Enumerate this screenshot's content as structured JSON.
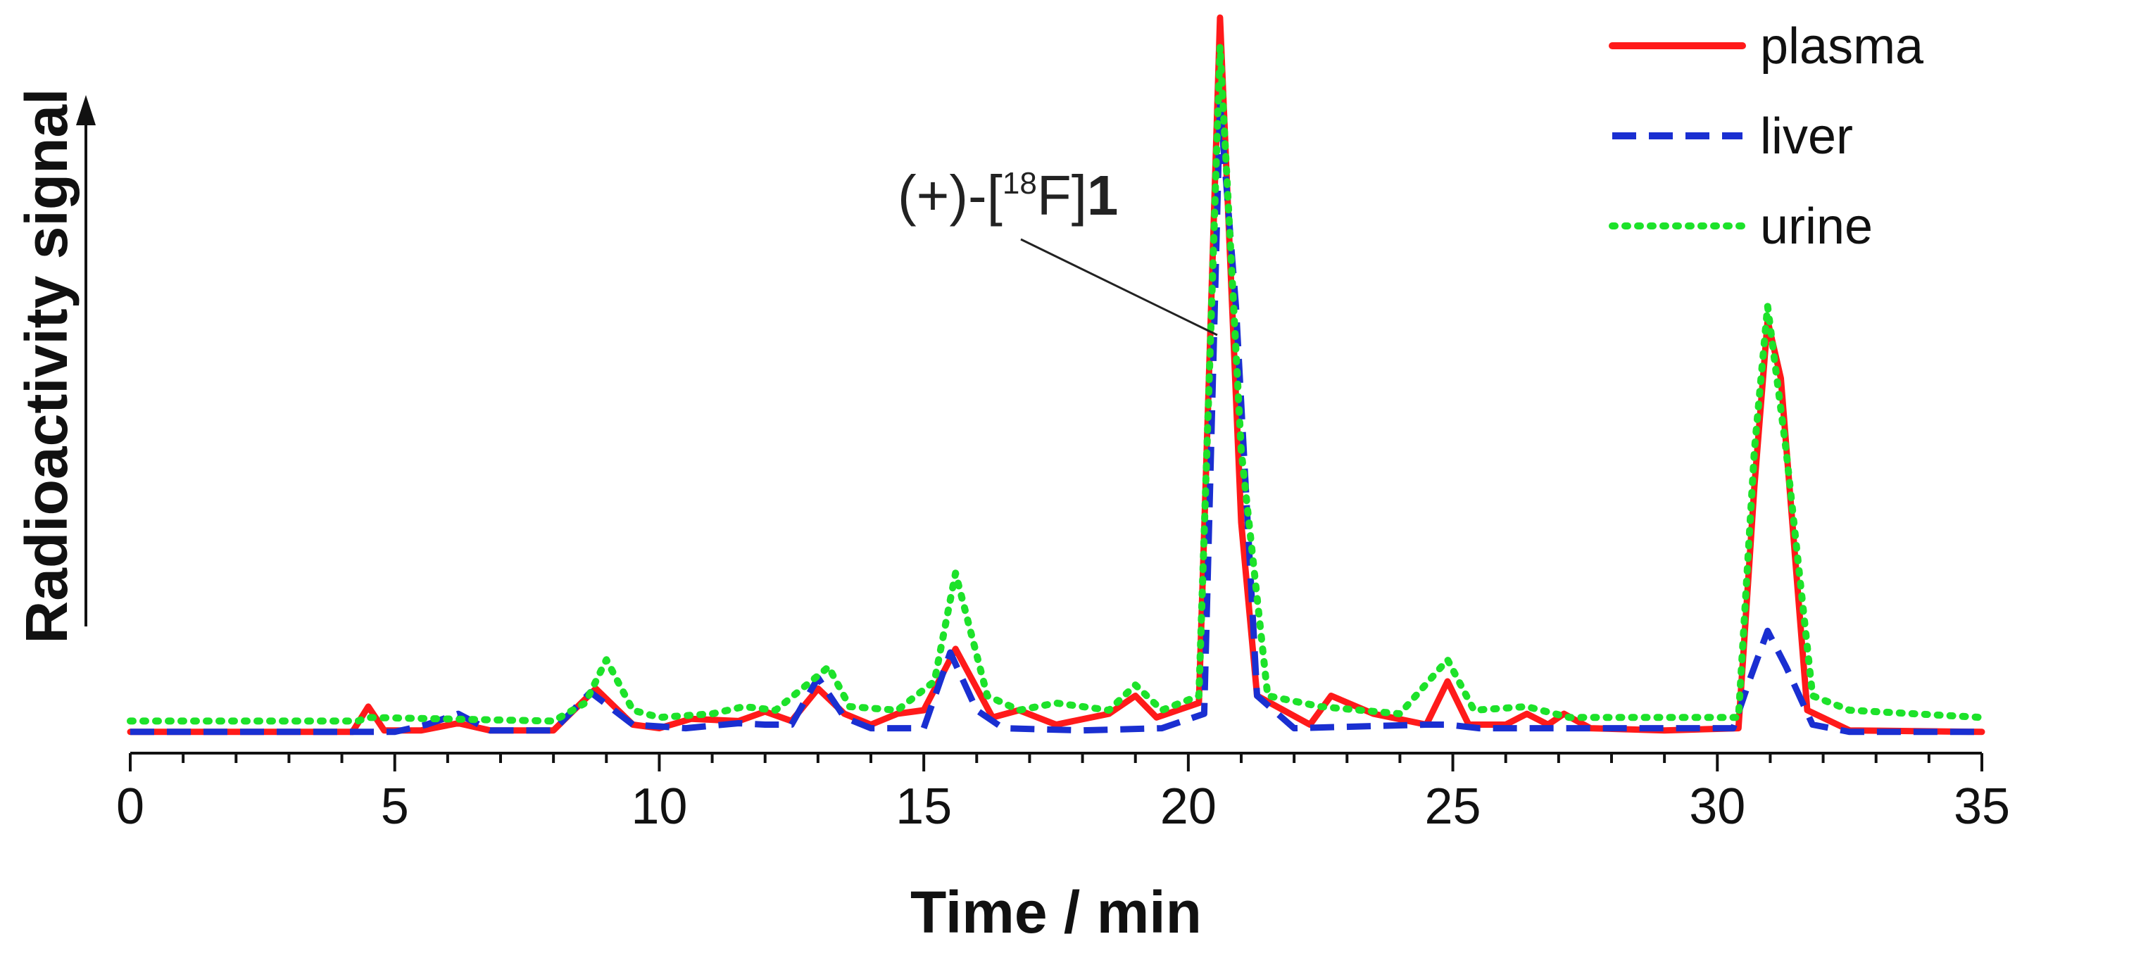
{
  "chart_data": {
    "type": "line",
    "title": "",
    "xlabel": "Time / min",
    "ylabel": "Radioactivity signal",
    "xlim": [
      0,
      35
    ],
    "ylim": [
      0,
      1.0
    ],
    "x_ticks": [
      "0",
      "5",
      "10",
      "15",
      "20",
      "25",
      "30",
      "35"
    ],
    "legend_position": "top-right",
    "annotation": {
      "prefix": "(+)-[",
      "superscript": "18",
      "element": "F]",
      "compound": "1",
      "target_x": 20.6,
      "target_y": 0.56
    },
    "series": [
      {
        "name": "plasma",
        "color": "#ff1a1a",
        "dash": "solid",
        "points": [
          [
            0,
            0.01
          ],
          [
            4.2,
            0.01
          ],
          [
            4.5,
            0.045
          ],
          [
            4.8,
            0.012
          ],
          [
            5.5,
            0.012
          ],
          [
            6.2,
            0.022
          ],
          [
            6.8,
            0.012
          ],
          [
            8.0,
            0.012
          ],
          [
            8.8,
            0.07
          ],
          [
            9.5,
            0.02
          ],
          [
            10.0,
            0.015
          ],
          [
            10.6,
            0.028
          ],
          [
            11.5,
            0.025
          ],
          [
            12.0,
            0.038
          ],
          [
            12.5,
            0.025
          ],
          [
            13.0,
            0.07
          ],
          [
            13.5,
            0.035
          ],
          [
            14.0,
            0.02
          ],
          [
            14.5,
            0.035
          ],
          [
            15.0,
            0.04
          ],
          [
            15.6,
            0.125
          ],
          [
            16.3,
            0.03
          ],
          [
            16.8,
            0.04
          ],
          [
            17.5,
            0.02
          ],
          [
            18.5,
            0.035
          ],
          [
            19.0,
            0.06
          ],
          [
            19.4,
            0.03
          ],
          [
            19.8,
            0.04
          ],
          [
            20.2,
            0.05
          ],
          [
            20.6,
            1.0
          ],
          [
            21.0,
            0.3
          ],
          [
            21.3,
            0.06
          ],
          [
            21.8,
            0.04
          ],
          [
            22.3,
            0.02
          ],
          [
            22.7,
            0.06
          ],
          [
            23.5,
            0.035
          ],
          [
            24.5,
            0.02
          ],
          [
            24.9,
            0.08
          ],
          [
            25.3,
            0.02
          ],
          [
            26.0,
            0.02
          ],
          [
            26.4,
            0.035
          ],
          [
            26.8,
            0.02
          ],
          [
            27.1,
            0.035
          ],
          [
            27.6,
            0.015
          ],
          [
            29.0,
            0.012
          ],
          [
            30.4,
            0.015
          ],
          [
            30.7,
            0.35
          ],
          [
            30.95,
            0.58
          ],
          [
            31.2,
            0.5
          ],
          [
            31.7,
            0.04
          ],
          [
            32.5,
            0.012
          ],
          [
            35.0,
            0.01
          ]
        ]
      },
      {
        "name": "liver",
        "color": "#1a2fd1",
        "dash": "dashed",
        "points": [
          [
            0,
            0.01
          ],
          [
            5.0,
            0.01
          ],
          [
            5.6,
            0.02
          ],
          [
            6.2,
            0.035
          ],
          [
            6.8,
            0.012
          ],
          [
            8.0,
            0.012
          ],
          [
            8.7,
            0.065
          ],
          [
            9.5,
            0.02
          ],
          [
            10.5,
            0.015
          ],
          [
            11.5,
            0.022
          ],
          [
            12.0,
            0.02
          ],
          [
            12.5,
            0.02
          ],
          [
            13.0,
            0.085
          ],
          [
            13.5,
            0.03
          ],
          [
            14.0,
            0.015
          ],
          [
            15.0,
            0.015
          ],
          [
            15.5,
            0.12
          ],
          [
            16.0,
            0.04
          ],
          [
            16.5,
            0.015
          ],
          [
            18.0,
            0.012
          ],
          [
            19.5,
            0.015
          ],
          [
            20.3,
            0.035
          ],
          [
            20.6,
            0.88
          ],
          [
            20.9,
            0.6
          ],
          [
            21.3,
            0.06
          ],
          [
            22.0,
            0.015
          ],
          [
            24.5,
            0.02
          ],
          [
            24.9,
            0.02
          ],
          [
            25.5,
            0.015
          ],
          [
            30.3,
            0.015
          ],
          [
            30.6,
            0.08
          ],
          [
            30.95,
            0.15
          ],
          [
            31.3,
            0.1
          ],
          [
            31.8,
            0.02
          ],
          [
            32.5,
            0.01
          ],
          [
            35.0,
            0.01
          ]
        ]
      },
      {
        "name": "urine",
        "color": "#1de22a",
        "dash": "dotted",
        "points": [
          [
            0,
            0.025
          ],
          [
            4.3,
            0.025
          ],
          [
            4.5,
            0.03
          ],
          [
            8.0,
            0.025
          ],
          [
            8.6,
            0.05
          ],
          [
            9.0,
            0.11
          ],
          [
            9.5,
            0.04
          ],
          [
            10.0,
            0.03
          ],
          [
            11.0,
            0.035
          ],
          [
            11.6,
            0.045
          ],
          [
            12.2,
            0.04
          ],
          [
            13.2,
            0.1
          ],
          [
            13.6,
            0.045
          ],
          [
            14.5,
            0.04
          ],
          [
            15.2,
            0.08
          ],
          [
            15.6,
            0.23
          ],
          [
            16.2,
            0.06
          ],
          [
            16.8,
            0.04
          ],
          [
            17.5,
            0.05
          ],
          [
            18.5,
            0.04
          ],
          [
            19.0,
            0.075
          ],
          [
            19.5,
            0.04
          ],
          [
            20.2,
            0.06
          ],
          [
            20.6,
            0.96
          ],
          [
            21.0,
            0.4
          ],
          [
            21.5,
            0.06
          ],
          [
            22.5,
            0.045
          ],
          [
            24.0,
            0.035
          ],
          [
            24.9,
            0.11
          ],
          [
            25.4,
            0.04
          ],
          [
            26.4,
            0.045
          ],
          [
            27.2,
            0.03
          ],
          [
            30.4,
            0.03
          ],
          [
            30.7,
            0.4
          ],
          [
            30.95,
            0.6
          ],
          [
            31.3,
            0.4
          ],
          [
            31.8,
            0.06
          ],
          [
            32.5,
            0.04
          ],
          [
            35.0,
            0.03
          ]
        ]
      }
    ]
  }
}
